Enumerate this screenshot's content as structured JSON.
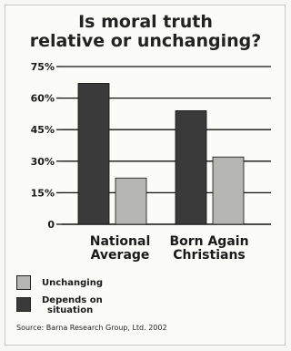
{
  "chart_data": {
    "type": "bar",
    "title_lines": [
      "Is moral truth",
      "relative or unchanging?"
    ],
    "categories": [
      "National Average",
      "Born Again Christians"
    ],
    "category_lines": [
      [
        "National",
        "Average"
      ],
      [
        "Born Again",
        "Christians"
      ]
    ],
    "series": [
      {
        "name": "Depends on situation",
        "legend_lines": [
          "Depends on",
          "situation"
        ],
        "values": [
          67,
          54
        ],
        "color": "#3a3a3a"
      },
      {
        "name": "Unchanging",
        "legend_lines": [
          "Unchanging"
        ],
        "values": [
          22,
          32
        ],
        "color": "#b5b5b2"
      }
    ],
    "yticks": [
      "0",
      "15%",
      "30%",
      "45%",
      "60%",
      "75%"
    ],
    "ylim": [
      0,
      75
    ],
    "grid": true,
    "legend_position": "bottom-left",
    "source": "Source: Barna Research Group, Ltd. 2002"
  }
}
